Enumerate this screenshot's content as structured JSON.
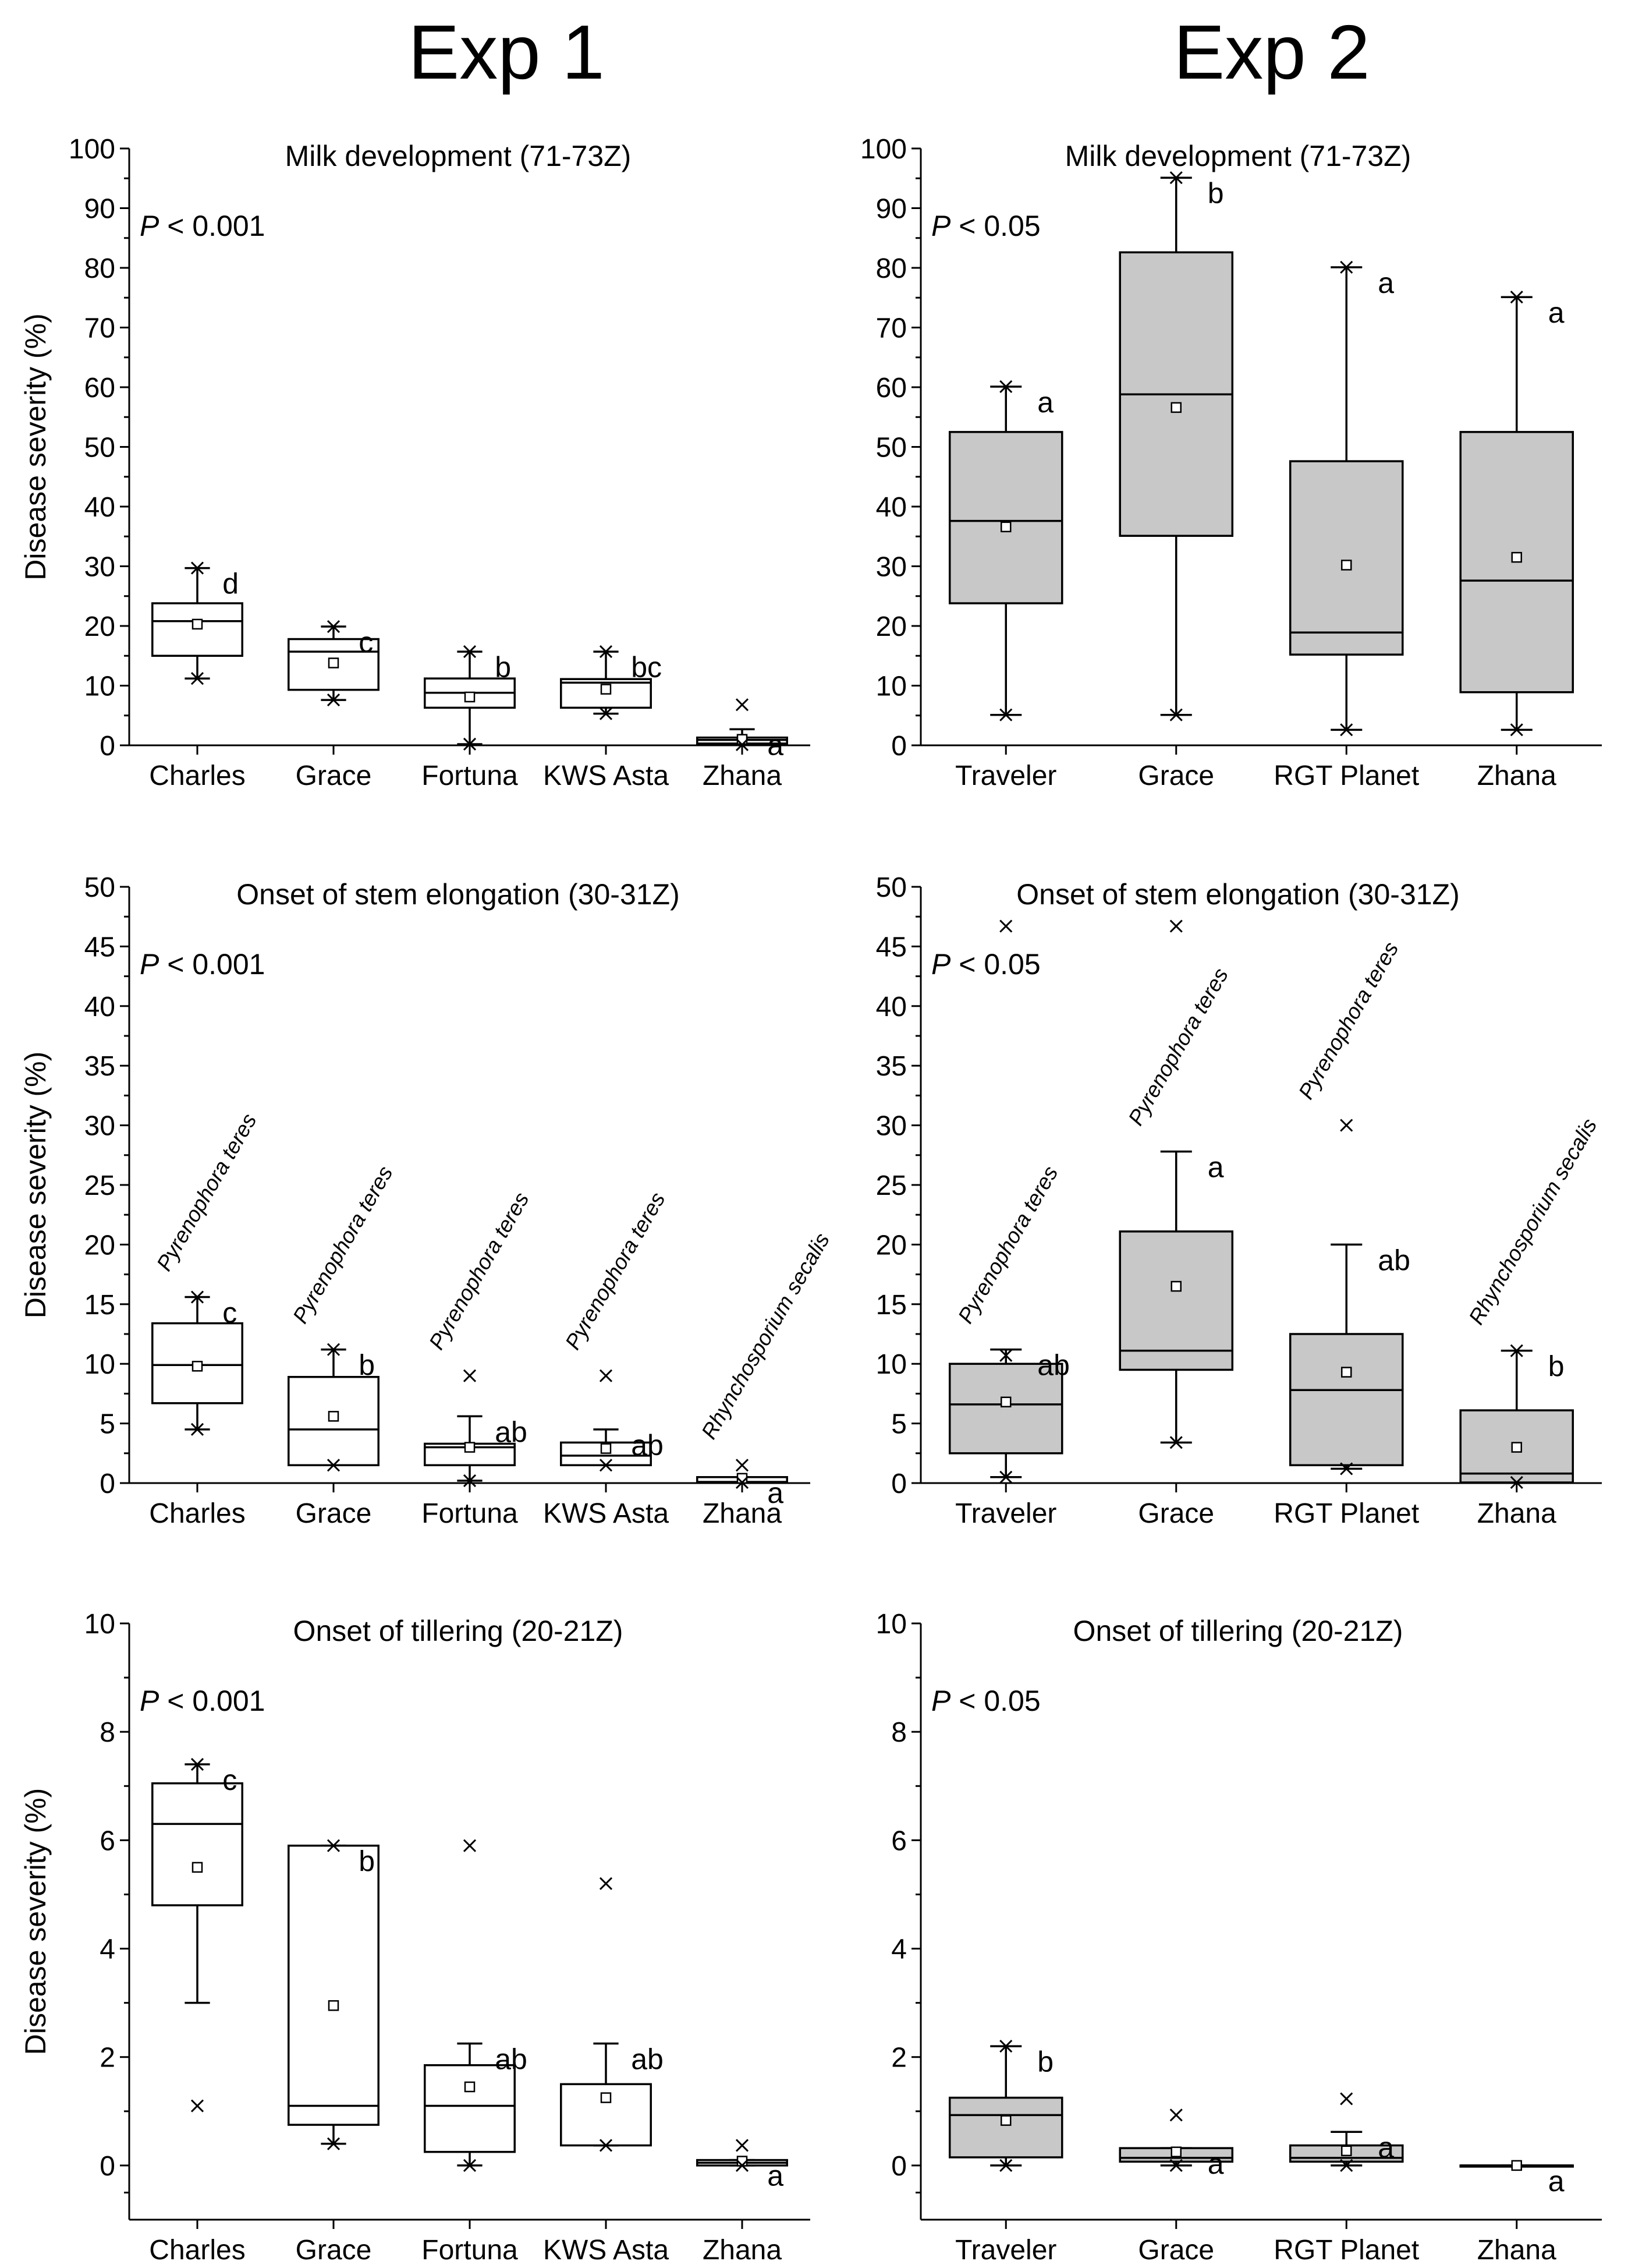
{
  "columns": [
    {
      "title": "Exp 1"
    },
    {
      "title": "Exp 2"
    }
  ],
  "colors": {
    "exp1_box": "#ffffff",
    "exp2_box": "#c8c8c8",
    "axis": "#000000"
  },
  "chart_data": [
    {
      "type": "box",
      "title": "Milk development (71-73Z)",
      "ylabel": "Disease severity (%)",
      "ylim": [
        0,
        100
      ],
      "yticks": [
        0,
        10,
        20,
        30,
        40,
        50,
        60,
        70,
        80,
        90,
        100
      ],
      "p_value": {
        "italic": "P",
        "text": " < 0.001"
      },
      "categories": [
        "Charles",
        "Grace",
        "Fortuna",
        "KWS Asta",
        "Zhana"
      ],
      "boxes": [
        {
          "q1": 15,
          "median": 20.8,
          "q3": 23.8,
          "mean": 20.3,
          "whisker_low": 11.2,
          "whisker_high": 29.7,
          "outliers": [
            11.2,
            29.7
          ],
          "letter": "d"
        },
        {
          "q1": 9.3,
          "median": 15.7,
          "q3": 17.8,
          "mean": 13.8,
          "whisker_low": 7.6,
          "whisker_high": 19.9,
          "outliers": [
            7.6,
            19.9
          ],
          "letter": "c"
        },
        {
          "q1": 6.3,
          "median": 8.8,
          "q3": 11.2,
          "mean": 8.1,
          "whisker_low": 0.2,
          "whisker_high": 15.7,
          "outliers": [
            0.2,
            15.7
          ],
          "letter": "b"
        },
        {
          "q1": 6.3,
          "median": 10.5,
          "q3": 11.1,
          "mean": 9.4,
          "whisker_low": 5.3,
          "whisker_high": 15.7,
          "outliers": [
            5.3,
            15.7
          ],
          "letter": "bc"
        },
        {
          "q1": 0.3,
          "median": 0.9,
          "q3": 1.3,
          "mean": 1.0,
          "whisker_low": 0.2,
          "whisker_high": 2.7,
          "outliers": [
            6.8,
            0.1
          ],
          "letter": "a"
        }
      ]
    },
    {
      "type": "box",
      "title": "Milk development (71-73Z)",
      "ylabel": "",
      "ylim": [
        0,
        100
      ],
      "yticks": [
        0,
        10,
        20,
        30,
        40,
        50,
        60,
        70,
        80,
        90,
        100
      ],
      "p_value": {
        "italic": "P",
        "text": " < 0.05"
      },
      "categories": [
        "Traveler",
        "Grace",
        "RGT Planet",
        "Zhana"
      ],
      "boxes": [
        {
          "q1": 23.8,
          "median": 37.6,
          "q3": 52.5,
          "mean": 36.6,
          "whisker_low": 5.1,
          "whisker_high": 60.1,
          "outliers": [
            5.1,
            60.1
          ],
          "letter": "a"
        },
        {
          "q1": 35.1,
          "median": 58.8,
          "q3": 82.6,
          "mean": 56.6,
          "whisker_low": 5.1,
          "whisker_high": 95.1,
          "outliers": [
            5.1,
            95.1
          ],
          "letter": "b"
        },
        {
          "q1": 15.2,
          "median": 18.9,
          "q3": 47.6,
          "mean": 30.2,
          "whisker_low": 2.6,
          "whisker_high": 80.1,
          "outliers": [
            2.6,
            80.1
          ],
          "letter": "a"
        },
        {
          "q1": 8.9,
          "median": 27.6,
          "q3": 52.5,
          "mean": 31.5,
          "whisker_low": 2.6,
          "whisker_high": 75.1,
          "outliers": [
            2.6,
            75.1
          ],
          "letter": "a"
        }
      ]
    },
    {
      "type": "box",
      "title": "Onset of stem elongation (30-31Z)",
      "ylabel": "Disease severity (%)",
      "ylim": [
        0,
        50
      ],
      "yticks": [
        0,
        5,
        10,
        15,
        20,
        25,
        30,
        35,
        40,
        45,
        50
      ],
      "p_value": {
        "italic": "P",
        "text": " < 0.001"
      },
      "categories": [
        "Charles",
        "Grace",
        "Fortuna",
        "KWS Asta",
        "Zhana"
      ],
      "boxes": [
        {
          "q1": 6.7,
          "median": 9.9,
          "q3": 13.4,
          "mean": 9.8,
          "whisker_low": 4.5,
          "whisker_high": 15.6,
          "outliers": [
            4.5,
            15.6
          ],
          "letter": "c",
          "species": "Pyrenophora teres"
        },
        {
          "q1": 1.5,
          "median": 4.5,
          "q3": 8.9,
          "mean": 5.6,
          "whisker_low": 1.5,
          "whisker_high": 11.2,
          "outliers": [
            1.5,
            11.2
          ],
          "letter": "b",
          "species": "Pyrenophora teres"
        },
        {
          "q1": 1.5,
          "median": 3.0,
          "q3": 3.3,
          "mean": 3.0,
          "whisker_low": 0.2,
          "whisker_high": 5.6,
          "outliers": [
            9.0,
            0.2
          ],
          "letter": "ab",
          "species": "Pyrenophora teres"
        },
        {
          "q1": 1.5,
          "median": 2.3,
          "q3": 3.4,
          "mean": 2.9,
          "whisker_low": 1.5,
          "whisker_high": 4.5,
          "outliers": [
            9.0,
            1.5
          ],
          "letter": "ab",
          "species": "Pyrenophora teres"
        },
        {
          "q1": 0.05,
          "median": 0.1,
          "q3": 0.5,
          "mean": 0.4,
          "whisker_low": 0.05,
          "whisker_high": 0.5,
          "outliers": [
            1.5,
            0.05
          ],
          "letter": "a",
          "species": "Rhynchosporium secalis"
        }
      ]
    },
    {
      "type": "box",
      "title": "Onset of stem elongation (30-31Z)",
      "ylabel": "",
      "ylim": [
        0,
        50
      ],
      "yticks": [
        0,
        5,
        10,
        15,
        20,
        25,
        30,
        35,
        40,
        45,
        50
      ],
      "p_value": {
        "italic": "P",
        "text": " < 0.05"
      },
      "categories": [
        "Traveler",
        "Grace",
        "RGT Planet",
        "Zhana"
      ],
      "boxes": [
        {
          "q1": 2.5,
          "median": 6.6,
          "q3": 10.0,
          "mean": 6.8,
          "whisker_low": 0.5,
          "whisker_high": 11.2,
          "outliers": [
            46.7,
            10.7,
            0.5
          ],
          "letter": "ab",
          "species": "Pyrenophora teres"
        },
        {
          "q1": 9.5,
          "median": 11.1,
          "q3": 21.1,
          "mean": 16.5,
          "whisker_low": 3.4,
          "whisker_high": 27.8,
          "outliers": [
            46.7,
            3.4
          ],
          "letter": "a",
          "species": "Pyrenophora teres"
        },
        {
          "q1": 1.5,
          "median": 7.8,
          "q3": 12.5,
          "mean": 9.3,
          "whisker_low": 1.2,
          "whisker_high": 20.0,
          "outliers": [
            30.0,
            1.2
          ],
          "letter": "ab",
          "species": "Pyrenophora teres"
        },
        {
          "q1": 0.05,
          "median": 0.8,
          "q3": 6.1,
          "mean": 3.0,
          "whisker_low": 0.05,
          "whisker_high": 11.1,
          "outliers": [
            11.1,
            0.05
          ],
          "letter": "b",
          "species": "Rhynchosporium secalis"
        }
      ]
    },
    {
      "type": "box",
      "title": "Onset of tillering (20-21Z)",
      "ylabel": "Disease severity (%)",
      "ylim": [
        -1,
        10
      ],
      "yticks": [
        0,
        2,
        4,
        6,
        8,
        10
      ],
      "p_value": {
        "italic": "P",
        "text": " < 0.001"
      },
      "categories": [
        "Charles",
        "Grace",
        "Fortuna",
        "KWS Asta",
        "Zhana"
      ],
      "boxes": [
        {
          "q1": 4.8,
          "median": 6.3,
          "q3": 7.05,
          "mean": 5.5,
          "whisker_low": 3.0,
          "whisker_high": 7.4,
          "outliers": [
            7.4,
            1.1
          ],
          "letter": "c"
        },
        {
          "q1": 0.75,
          "median": 1.1,
          "q3": 5.9,
          "mean": 2.95,
          "whisker_low": 0.4,
          "whisker_high": 5.9,
          "outliers": [
            5.9,
            0.4
          ],
          "letter": "b"
        },
        {
          "q1": 0.25,
          "median": 1.1,
          "q3": 1.85,
          "mean": 1.45,
          "whisker_low": 0.0,
          "whisker_high": 2.25,
          "outliers": [
            5.9,
            0.0
          ],
          "letter": "ab"
        },
        {
          "q1": 0.37,
          "median": 1.5,
          "q3": 1.5,
          "mean": 1.25,
          "whisker_low": 0.37,
          "whisker_high": 2.25,
          "outliers": [
            5.2,
            0.37
          ],
          "letter": "ab"
        },
        {
          "q1": 0.0,
          "median": 0.05,
          "q3": 0.1,
          "mean": 0.08,
          "whisker_low": 0.0,
          "whisker_high": 0.1,
          "outliers": [
            0.37,
            0.0
          ],
          "letter": "a"
        }
      ]
    },
    {
      "type": "box",
      "title": "Onset of tillering (20-21Z)",
      "ylabel": "",
      "ylim": [
        -1,
        10
      ],
      "yticks": [
        0,
        2,
        4,
        6,
        8,
        10
      ],
      "p_value": {
        "italic": "P",
        "text": " < 0.05"
      },
      "categories": [
        "Traveler",
        "Grace",
        "RGT Planet",
        "Zhana"
      ],
      "boxes": [
        {
          "q1": 0.15,
          "median": 0.93,
          "q3": 1.25,
          "mean": 0.83,
          "whisker_low": 0.0,
          "whisker_high": 2.2,
          "outliers": [
            2.2,
            0.0
          ],
          "letter": "b"
        },
        {
          "q1": 0.07,
          "median": 0.14,
          "q3": 0.32,
          "mean": 0.25,
          "whisker_low": 0.0,
          "whisker_high": 0.32,
          "outliers": [
            0.93,
            0.0
          ],
          "letter": "a"
        },
        {
          "q1": 0.07,
          "median": 0.14,
          "q3": 0.37,
          "mean": 0.27,
          "whisker_low": 0.0,
          "whisker_high": 0.62,
          "outliers": [
            1.23,
            0.0
          ],
          "letter": "a"
        },
        {
          "q1": 0.0,
          "median": 0.0,
          "q3": 0.0,
          "mean": 0.0,
          "whisker_low": 0.0,
          "whisker_high": 0.0,
          "outliers": [],
          "letter": "a"
        }
      ]
    }
  ]
}
